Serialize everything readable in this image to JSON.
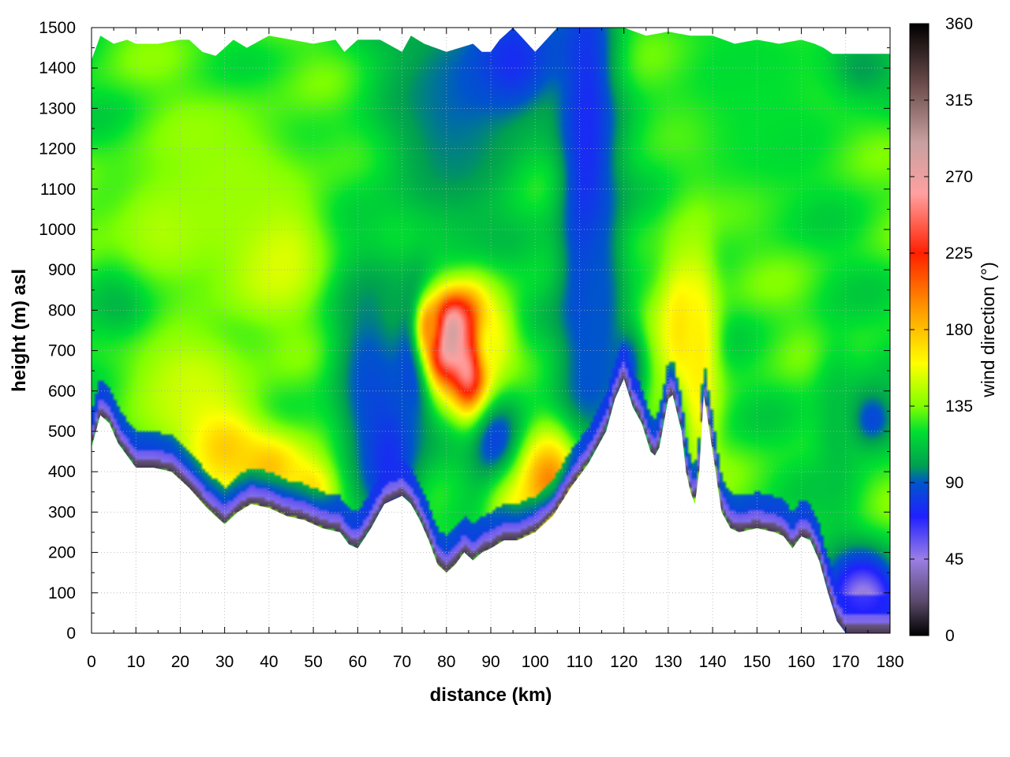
{
  "chart_data": {
    "type": "heatmap",
    "title": "",
    "xlabel": "distance (km)",
    "ylabel": "height (m) asl",
    "colorbar_label": "wind direction (°)",
    "xlim": [
      0,
      180
    ],
    "ylim": [
      0,
      1500
    ],
    "clim": [
      0,
      360
    ],
    "x_ticks": [
      0,
      10,
      20,
      30,
      40,
      50,
      60,
      70,
      80,
      90,
      100,
      110,
      120,
      130,
      140,
      150,
      160,
      170,
      180
    ],
    "y_ticks": [
      0,
      100,
      200,
      300,
      400,
      500,
      600,
      700,
      800,
      900,
      1000,
      1100,
      1200,
      1300,
      1400,
      1500
    ],
    "colorbar_ticks": [
      0,
      45,
      90,
      135,
      180,
      225,
      270,
      315,
      360
    ],
    "grid": true,
    "colormap_stops": [
      {
        "value": 0,
        "color": "#000000"
      },
      {
        "value": 20,
        "color": "#5a4a6a"
      },
      {
        "value": 45,
        "color": "#9b7fe6"
      },
      {
        "value": 70,
        "color": "#2020ff"
      },
      {
        "value": 90,
        "color": "#0055cc"
      },
      {
        "value": 100,
        "color": "#00a050"
      },
      {
        "value": 120,
        "color": "#00e030"
      },
      {
        "value": 135,
        "color": "#80ff00"
      },
      {
        "value": 160,
        "color": "#ffff00"
      },
      {
        "value": 190,
        "color": "#ffa000"
      },
      {
        "value": 225,
        "color": "#ff2000"
      },
      {
        "value": 260,
        "color": "#ffa0a0"
      },
      {
        "value": 290,
        "color": "#c8a0a0"
      },
      {
        "value": 325,
        "color": "#6a4a4a"
      },
      {
        "value": 360,
        "color": "#000000"
      }
    ],
    "terrain_height_m": {
      "x": [
        0,
        2,
        4,
        6,
        8,
        10,
        14,
        18,
        22,
        26,
        28,
        30,
        33,
        36,
        40,
        44,
        48,
        52,
        56,
        58,
        60,
        63,
        66,
        68,
        70,
        72,
        74,
        76,
        78,
        80,
        82,
        84,
        86,
        88,
        90,
        93,
        96,
        100,
        104,
        108,
        112,
        116,
        118,
        120,
        122,
        124,
        126,
        127,
        128,
        130,
        131,
        133,
        134,
        135,
        136,
        137,
        138,
        140,
        142,
        144,
        146,
        150,
        154,
        156,
        158,
        160,
        162,
        164,
        166,
        168,
        170,
        172,
        174,
        176,
        178,
        180
      ],
      "y": [
        460,
        540,
        520,
        470,
        440,
        410,
        410,
        400,
        360,
        310,
        290,
        270,
        300,
        320,
        310,
        290,
        280,
        260,
        250,
        220,
        210,
        260,
        320,
        330,
        340,
        320,
        280,
        230,
        170,
        150,
        170,
        200,
        180,
        200,
        210,
        230,
        230,
        250,
        290,
        360,
        420,
        500,
        580,
        630,
        560,
        520,
        450,
        440,
        460,
        580,
        590,
        500,
        400,
        350,
        320,
        400,
        590,
        450,
        300,
        260,
        250,
        260,
        250,
        240,
        210,
        240,
        230,
        180,
        100,
        30,
        0,
        0,
        0,
        0,
        0,
        0
      ]
    },
    "data_top_height_m": {
      "x": [
        0,
        2,
        5,
        8,
        10,
        15,
        20,
        22,
        25,
        28,
        32,
        35,
        40,
        45,
        50,
        55,
        57,
        60,
        65,
        70,
        72,
        75,
        80,
        83,
        86,
        88,
        90,
        92,
        95,
        100,
        105,
        108,
        112,
        116,
        120,
        125,
        130,
        135,
        140,
        145,
        150,
        155,
        160,
        163,
        165,
        167,
        180
      ],
      "y": [
        1420,
        1480,
        1460,
        1470,
        1460,
        1460,
        1470,
        1470,
        1440,
        1430,
        1470,
        1450,
        1480,
        1470,
        1460,
        1470,
        1440,
        1470,
        1470,
        1440,
        1480,
        1460,
        1440,
        1450,
        1460,
        1440,
        1440,
        1470,
        1500,
        1440,
        1500,
        1500,
        1500,
        1500,
        1500,
        1480,
        1490,
        1480,
        1480,
        1460,
        1470,
        1460,
        1470,
        1460,
        1450,
        1435,
        1435
      ]
    },
    "wind_direction_field": {
      "background_deg": 125,
      "features": [
        {
          "x": 8,
          "y": 830,
          "sx": 7,
          "sy": 90,
          "deg": 95
        },
        {
          "x": 23,
          "y": 620,
          "sx": 10,
          "sy": 110,
          "deg": 150
        },
        {
          "x": 42,
          "y": 950,
          "sx": 8,
          "sy": 110,
          "deg": 160
        },
        {
          "x": 17,
          "y": 1000,
          "sx": 10,
          "sy": 120,
          "deg": 145
        },
        {
          "x": 32,
          "y": 1120,
          "sx": 12,
          "sy": 150,
          "deg": 140
        },
        {
          "x": 30,
          "y": 460,
          "sx": 6,
          "sy": 70,
          "deg": 175
        },
        {
          "x": 40,
          "y": 410,
          "sx": 6,
          "sy": 60,
          "deg": 180
        },
        {
          "x": 50,
          "y": 360,
          "sx": 5,
          "sy": 60,
          "deg": 175
        },
        {
          "x": 62,
          "y": 640,
          "sx": 6,
          "sy": 200,
          "deg": 90
        },
        {
          "x": 67,
          "y": 420,
          "sx": 5,
          "sy": 150,
          "deg": 75
        },
        {
          "x": 80,
          "y": 1300,
          "sx": 12,
          "sy": 260,
          "deg": 95
        },
        {
          "x": 95,
          "y": 1420,
          "sx": 8,
          "sy": 120,
          "deg": 75
        },
        {
          "x": 74,
          "y": 700,
          "sx": 3,
          "sy": 120,
          "deg": 70
        },
        {
          "x": 79,
          "y": 710,
          "sx": 3,
          "sy": 80,
          "deg": 230
        },
        {
          "x": 86,
          "y": 680,
          "sx": 3,
          "sy": 90,
          "deg": 345
        },
        {
          "x": 82,
          "y": 740,
          "sx": 3,
          "sy": 60,
          "deg": 300
        },
        {
          "x": 76,
          "y": 760,
          "sx": 2,
          "sy": 50,
          "deg": 195
        },
        {
          "x": 90,
          "y": 720,
          "sx": 4,
          "sy": 90,
          "deg": 160
        },
        {
          "x": 92,
          "y": 450,
          "sx": 5,
          "sy": 100,
          "deg": 75
        },
        {
          "x": 95,
          "y": 300,
          "sx": 5,
          "sy": 70,
          "deg": 150
        },
        {
          "x": 105,
          "y": 380,
          "sx": 6,
          "sy": 80,
          "deg": 210
        },
        {
          "x": 112,
          "y": 1150,
          "sx": 5,
          "sy": 500,
          "deg": 70
        },
        {
          "x": 114,
          "y": 800,
          "sx": 4,
          "sy": 200,
          "deg": 90
        },
        {
          "x": 121,
          "y": 660,
          "sx": 3,
          "sy": 80,
          "deg": 85
        },
        {
          "x": 133,
          "y": 750,
          "sx": 4,
          "sy": 160,
          "deg": 170
        },
        {
          "x": 137,
          "y": 700,
          "sx": 3,
          "sy": 200,
          "deg": 165
        },
        {
          "x": 131,
          "y": 500,
          "sx": 2,
          "sy": 70,
          "deg": 90
        },
        {
          "x": 150,
          "y": 1300,
          "sx": 15,
          "sy": 200,
          "deg": 120
        },
        {
          "x": 174,
          "y": 1400,
          "sx": 6,
          "sy": 60,
          "deg": 100
        },
        {
          "x": 175,
          "y": 530,
          "sx": 5,
          "sy": 60,
          "deg": 80
        },
        {
          "x": 168,
          "y": 500,
          "sx": 4,
          "sy": 200,
          "deg": 110
        },
        {
          "x": 174,
          "y": 80,
          "sx": 6,
          "sy": 80,
          "deg": 40
        }
      ],
      "near_ground_layers": [
        {
          "depth_m": 20,
          "deg": 15
        },
        {
          "depth_m": 45,
          "deg": 45
        },
        {
          "depth_m": 90,
          "deg": 75
        }
      ]
    }
  }
}
